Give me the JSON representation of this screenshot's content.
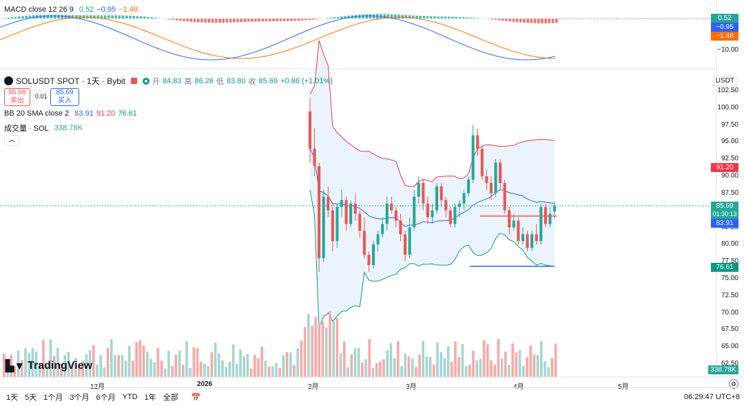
{
  "macd": {
    "label": "MACD close 12 26 9",
    "v1": "0.52",
    "v2": "−0.95",
    "v3": "−1.48",
    "axis": [
      "0.52",
      "−0.95",
      "−1.48",
      "−10.00"
    ]
  },
  "symbol": {
    "title": "SOLUSDT SPOT · 1天 · Bybit",
    "open_label": "开",
    "open": "84.83",
    "high_label": "高",
    "high": "86.26",
    "low_label": "低",
    "low": "83.80",
    "close_label": "收",
    "close": "85.69",
    "change": "+0.86 (+1.01%)"
  },
  "trade": {
    "sell_price": "85.68",
    "sell_label": "卖出",
    "spread": "0.01",
    "buy_price": "85.69",
    "buy_label": "买入"
  },
  "bb": {
    "label": "BB 20 SMA close 2",
    "mid": "83.91",
    "upper": "91.20",
    "lower": "76.61"
  },
  "volume": {
    "label": "成交量 · SOL",
    "value": "338.78K"
  },
  "price_axis": {
    "currency": "USDT",
    "ticks": [
      "102.50",
      "100.00",
      "97.50",
      "95.00",
      "92.50",
      "90.00",
      "87.50",
      "85.00",
      "82.50",
      "80.00",
      "77.50",
      "75.00",
      "72.50",
      "70.00",
      "67.50",
      "65.00",
      "62.50"
    ],
    "current_price": "85.69",
    "countdown": "01:30:13",
    "bb_upper_tag": "91.20",
    "bb_mid_tag": "83.91",
    "bb_lower_tag": "76.61",
    "volume_tag": "338.78K"
  },
  "time_axis": [
    "12月",
    "2026",
    "2月",
    "3月",
    "4月",
    "5月"
  ],
  "timeframes": [
    "1天",
    "5天",
    "1个月",
    "3个月",
    "6个月",
    "YTD",
    "1年",
    "全部"
  ],
  "clock": "06:29:47 UTC+8",
  "branding": "TradingView",
  "colors": {
    "up": "#26a69a",
    "down": "#ef5350",
    "bb_mid": "#2962ff",
    "bb_upper": "#f23645",
    "bb_lower": "#089981",
    "bb_fill": "#e3f0fb"
  },
  "chart_data": {
    "type": "candlestick",
    "candles": [
      [
        99.5,
        101.5,
        92.0,
        94.0
      ],
      [
        94.0,
        97.0,
        90.0,
        91.5
      ],
      [
        91.5,
        92.0,
        76.0,
        78.0
      ],
      [
        78.0,
        88.0,
        77.5,
        87.0
      ],
      [
        87.0,
        88.5,
        84.0,
        85.0
      ],
      [
        85.0,
        86.0,
        79.0,
        80.5
      ],
      [
        80.5,
        86.0,
        79.5,
        85.5
      ],
      [
        85.5,
        88.0,
        84.0,
        86.5
      ],
      [
        86.5,
        87.0,
        82.0,
        83.0
      ],
      [
        83.0,
        86.5,
        82.5,
        86.0
      ],
      [
        86.0,
        87.5,
        83.5,
        84.5
      ],
      [
        84.5,
        85.0,
        81.0,
        82.0
      ],
      [
        82.0,
        84.0,
        78.0,
        78.5
      ],
      [
        78.5,
        79.0,
        76.0,
        77.0
      ],
      [
        77.0,
        80.5,
        76.5,
        80.0
      ],
      [
        80.0,
        82.0,
        79.0,
        81.5
      ],
      [
        81.5,
        84.0,
        81.0,
        83.0
      ],
      [
        83.0,
        87.0,
        82.0,
        86.0
      ],
      [
        86.0,
        87.0,
        84.5,
        85.0
      ],
      [
        85.0,
        85.5,
        82.5,
        83.5
      ],
      [
        83.5,
        84.5,
        80.5,
        81.5
      ],
      [
        81.5,
        82.0,
        77.5,
        78.5
      ],
      [
        78.5,
        84.0,
        78.0,
        82.5
      ],
      [
        82.5,
        88.0,
        82.0,
        87.0
      ],
      [
        87.0,
        90.0,
        86.0,
        89.0
      ],
      [
        89.0,
        89.5,
        85.0,
        86.0
      ],
      [
        86.0,
        87.0,
        83.0,
        84.0
      ],
      [
        84.0,
        86.0,
        83.0,
        85.0
      ],
      [
        85.0,
        89.0,
        84.5,
        88.5
      ],
      [
        88.5,
        89.0,
        85.5,
        86.5
      ],
      [
        86.5,
        87.0,
        84.0,
        85.0
      ],
      [
        85.0,
        85.5,
        82.5,
        83.0
      ],
      [
        83.0,
        86.0,
        82.5,
        85.5
      ],
      [
        85.5,
        86.5,
        84.0,
        86.0
      ],
      [
        86.0,
        88.0,
        85.0,
        87.5
      ],
      [
        87.5,
        90.0,
        87.0,
        89.5
      ],
      [
        89.5,
        97.5,
        89.0,
        96.0
      ],
      [
        96.0,
        97.0,
        93.0,
        94.0
      ],
      [
        94.0,
        94.5,
        89.5,
        90.0
      ],
      [
        90.0,
        91.0,
        88.0,
        89.0
      ],
      [
        89.0,
        90.0,
        86.5,
        87.5
      ],
      [
        87.5,
        92.5,
        87.0,
        92.0
      ],
      [
        92.0,
        92.5,
        88.0,
        89.0
      ],
      [
        89.0,
        89.5,
        84.5,
        85.0
      ],
      [
        85.0,
        85.5,
        81.5,
        82.5
      ],
      [
        82.5,
        84.5,
        82.0,
        83.5
      ],
      [
        83.5,
        84.0,
        80.0,
        80.5
      ],
      [
        80.5,
        82.5,
        80.0,
        81.5
      ],
      [
        81.5,
        82.0,
        79.0,
        79.5
      ],
      [
        79.5,
        82.0,
        79.0,
        81.5
      ],
      [
        81.5,
        83.0,
        80.0,
        80.5
      ],
      [
        80.5,
        86.0,
        80.0,
        85.5
      ],
      [
        85.5,
        86.0,
        82.5,
        83.0
      ],
      [
        83.0,
        85.5,
        82.5,
        84.5
      ],
      [
        84.83,
        86.26,
        83.8,
        85.69
      ]
    ],
    "bb_upper_value": 91.2,
    "bb_mid_value": 83.91,
    "bb_lower_value": 76.61,
    "ylim": [
      61.5,
      104.0
    ]
  }
}
